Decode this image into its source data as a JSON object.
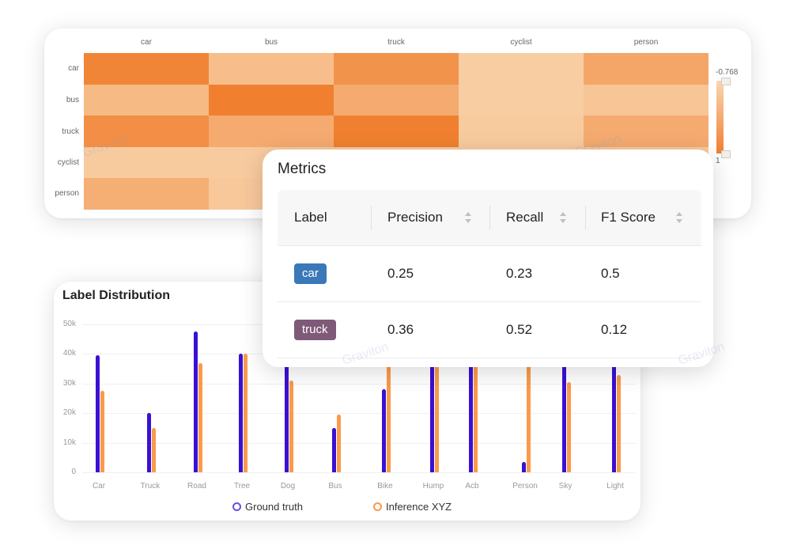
{
  "heatmap": {
    "columns": [
      "car",
      "bus",
      "truck",
      "cyclist",
      "person"
    ],
    "rows": [
      "car",
      "bus",
      "truck",
      "cyclist",
      "person"
    ],
    "values": [
      [
        0.95,
        0.35,
        0.8,
        0.2,
        0.6
      ],
      [
        0.4,
        1.0,
        0.55,
        0.2,
        0.28
      ],
      [
        0.85,
        0.55,
        1.0,
        0.22,
        0.55
      ],
      [
        0.22,
        0.22,
        0.22,
        0.22,
        0.22
      ],
      [
        0.52,
        0.25,
        0.25,
        0.22,
        0.22
      ]
    ],
    "scale_max": "-0.768",
    "scale_min": "1",
    "watermark": "Graviton"
  },
  "metrics": {
    "title": "Metrics",
    "headers": {
      "label": "Label",
      "precision": "Precision",
      "recall": "Recall",
      "f1": "F1 Score"
    },
    "rows": [
      {
        "label": "car",
        "precision": "0.25",
        "recall": "0.23",
        "f1": "0.5",
        "color": "#3a78b8"
      },
      {
        "label": "truck",
        "precision": "0.36",
        "recall": "0.52",
        "f1": "0.12",
        "color": "#7e5a78"
      }
    ],
    "watermark": "Graviton"
  },
  "distribution": {
    "title": "Label Distribution",
    "chart_data": {
      "type": "bar",
      "categories": [
        "Car",
        "Truck",
        "Road",
        "Tree",
        "Dog",
        "Bus",
        "Bike",
        "Hump",
        "Acb",
        "Person",
        "Sky",
        "Light"
      ],
      "series": [
        {
          "name": "Ground truth",
          "color": "#3a10d4",
          "values": [
            39500,
            20000,
            47500,
            40000,
            38000,
            15000,
            28000,
            45000,
            45000,
            3500,
            44000,
            43000
          ]
        },
        {
          "name": "Inference XYZ",
          "color": "#fa9a4a",
          "values": [
            27500,
            15000,
            37000,
            40000,
            31000,
            19500,
            45000,
            45000,
            45000,
            45000,
            30500,
            33000
          ]
        }
      ],
      "ylim": [
        0,
        50000
      ],
      "yticks": [
        "0",
        "10k",
        "20k",
        "30k",
        "40k",
        "50k"
      ]
    }
  }
}
